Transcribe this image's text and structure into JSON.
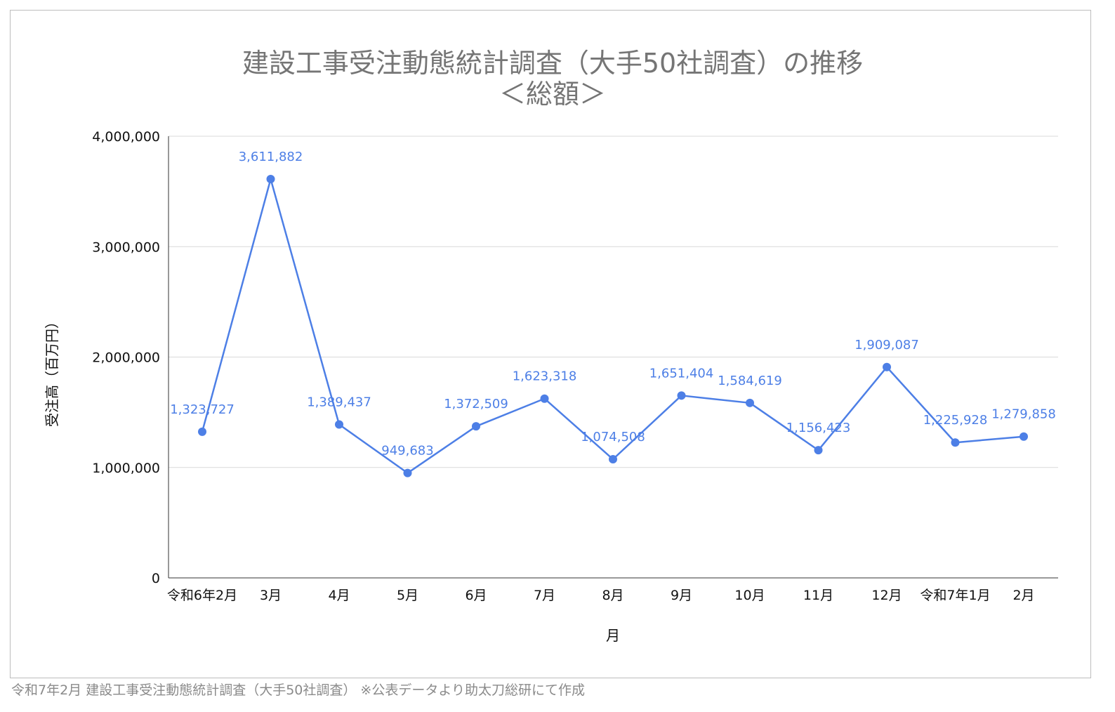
{
  "chart_data": {
    "type": "line",
    "title": "建設工事受注動態統計調査（大手50社調査）の推移",
    "subtitle": "＜総額＞",
    "xlabel": "月",
    "ylabel": "受注高（百万円）",
    "ylim": [
      0,
      4000000
    ],
    "yticks": [
      "0",
      "1,000,000",
      "2,000,000",
      "3,000,000",
      "4,000,000"
    ],
    "ytick_values": [
      0,
      1000000,
      2000000,
      3000000,
      4000000
    ],
    "grid": true,
    "legend": "none",
    "categories": [
      "令和6年2月",
      "3月",
      "4月",
      "5月",
      "6月",
      "7月",
      "8月",
      "9月",
      "10月",
      "11月",
      "12月",
      "令和7年1月",
      "2月"
    ],
    "series": [
      {
        "values": [
          1323727,
          3611882,
          1389437,
          949683,
          1372509,
          1623318,
          1074508,
          1651404,
          1584619,
          1156423,
          1909087,
          1225928,
          1279858
        ],
        "labels": [
          "1,323,727",
          "3,611,882",
          "1,389,437",
          "949,683",
          "1,372,509",
          "1,623,318",
          "1,074,508",
          "1,651,404",
          "1,584,619",
          "1,156,423",
          "1,909,087",
          "1,225,928",
          "1,279,858"
        ],
        "color": "#4d7fe6"
      }
    ]
  },
  "footer": {
    "source_note": "令和7年2月 建設工事受注動態統計調査（大手50社調査） ※公表データより助太刀総研にて作成"
  }
}
